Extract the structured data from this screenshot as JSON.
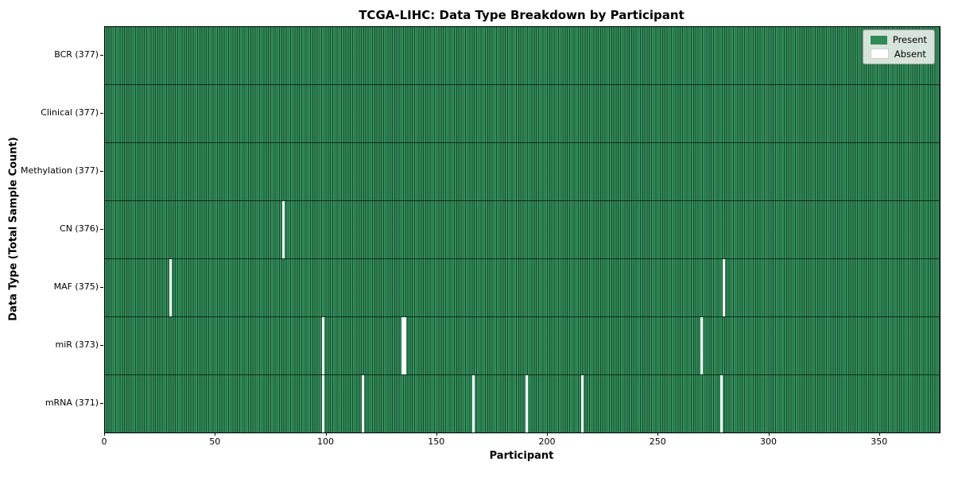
{
  "chart_data": {
    "type": "heatmap",
    "title": "TCGA-LIHC: Data Type Breakdown by Participant",
    "xlabel": "Participant",
    "ylabel": "Data Type (Total Sample Count)",
    "x_ticks": [
      0,
      50,
      100,
      150,
      200,
      250,
      300,
      350
    ],
    "xlim": [
      0,
      377
    ],
    "n_participants": 377,
    "grid": false,
    "legend_position": "upper right",
    "legend": [
      {
        "label": "Present",
        "color": "#2e8b57"
      },
      {
        "label": "Absent",
        "color": "#ffffff"
      }
    ],
    "rows": [
      {
        "label": "BCR (377)",
        "data_type": "BCR",
        "total": 377,
        "absent_participants": []
      },
      {
        "label": "Clinical (377)",
        "data_type": "Clinical",
        "total": 377,
        "absent_participants": []
      },
      {
        "label": "Methylation (377)",
        "data_type": "Methylation",
        "total": 377,
        "absent_participants": []
      },
      {
        "label": "CN (376)",
        "data_type": "CN",
        "total": 376,
        "absent_participants": [
          80
        ]
      },
      {
        "label": "MAF (375)",
        "data_type": "MAF",
        "total": 375,
        "absent_participants": [
          29,
          279
        ]
      },
      {
        "label": "miR (373)",
        "data_type": "miR",
        "total": 373,
        "absent_participants": [
          98,
          134,
          135,
          269
        ]
      },
      {
        "label": "mRNA (371)",
        "data_type": "mRNA",
        "total": 371,
        "absent_participants": [
          98,
          116,
          166,
          190,
          215,
          278
        ]
      }
    ],
    "colors": {
      "present": "#2e8b57",
      "present_stripe_light": "#35905e",
      "cell_edge": "#1b4c30",
      "absent": "#ffffff",
      "row_divider": "rgba(0,0,0,0.65)"
    }
  }
}
